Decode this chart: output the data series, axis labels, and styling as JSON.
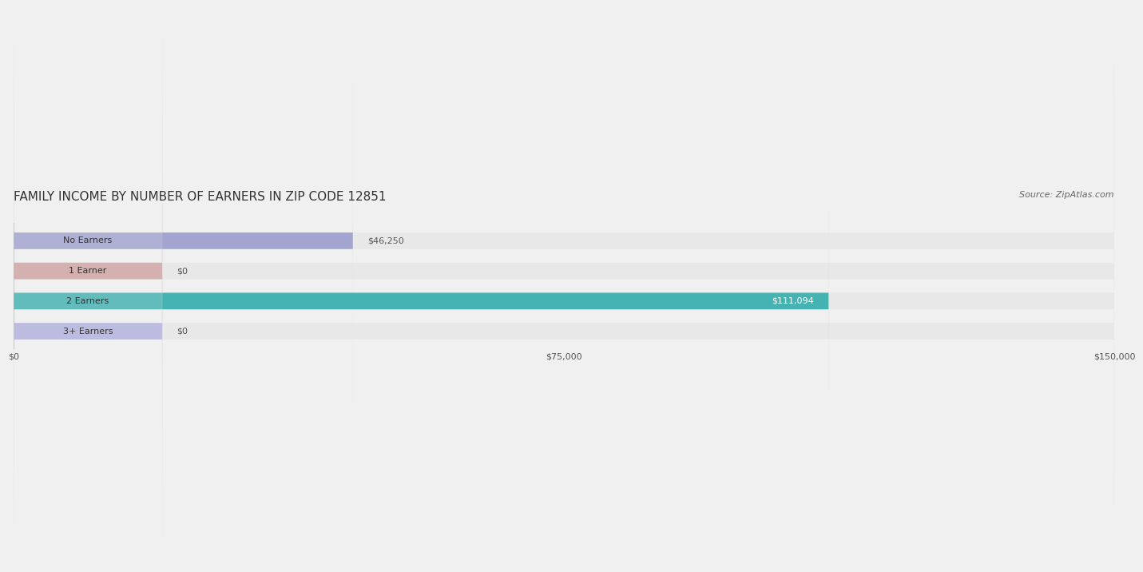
{
  "title": "FAMILY INCOME BY NUMBER OF EARNERS IN ZIP CODE 12851",
  "source": "Source: ZipAtlas.com",
  "categories": [
    "No Earners",
    "1 Earner",
    "2 Earners",
    "3+ Earners"
  ],
  "values": [
    46250,
    0,
    111094,
    0
  ],
  "bar_colors": [
    "#9999cc",
    "#cc9999",
    "#29aaaa",
    "#aaaadd"
  ],
  "background_color": "#f0f0f0",
  "bar_bg_color": "#e8e8e8",
  "xlim": [
    0,
    150000
  ],
  "xticks": [
    0,
    75000,
    150000
  ],
  "xtick_labels": [
    "$0",
    "$75,000",
    "$150,000"
  ],
  "value_labels": [
    "$46,250",
    "$0",
    "$111,094",
    "$0"
  ],
  "title_fontsize": 11,
  "source_fontsize": 8,
  "label_fontsize": 8,
  "bar_height": 0.55,
  "value_inside_threshold": 90000
}
